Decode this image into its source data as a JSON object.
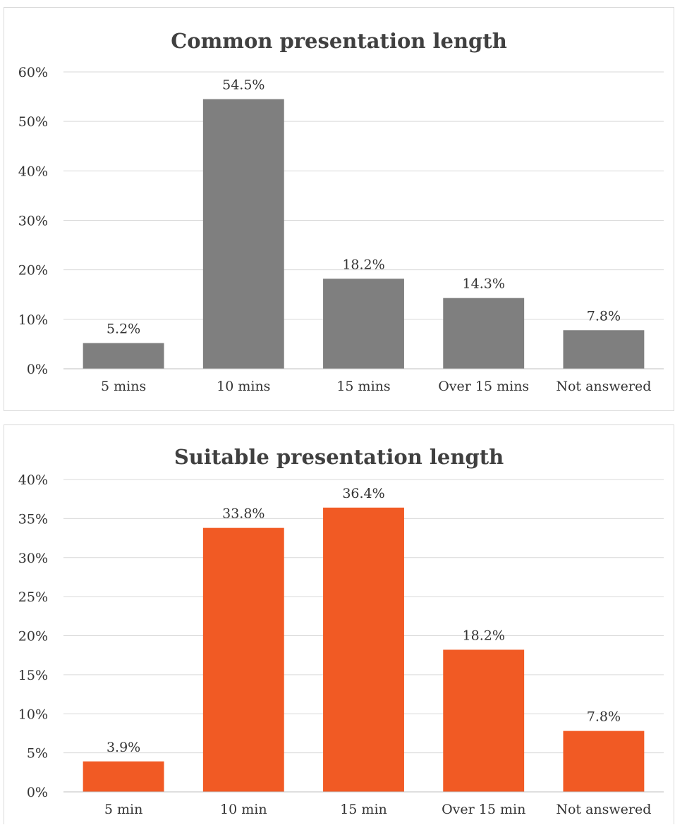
{
  "chart_data": [
    {
      "type": "bar",
      "title": "Common presentation length",
      "categories": [
        "5 mins",
        "10 mins",
        "15 mins",
        "Over 15 mins",
        "Not answered"
      ],
      "values": [
        5.2,
        54.5,
        18.2,
        14.3,
        7.8
      ],
      "value_labels": [
        "5.2%",
        "54.5%",
        "18.2%",
        "14.3%",
        "7.8%"
      ],
      "ylim": [
        0,
        60
      ],
      "yticks": [
        0,
        10,
        20,
        30,
        40,
        50,
        60
      ],
      "ytick_labels": [
        "0%",
        "10%",
        "20%",
        "30%",
        "40%",
        "50%",
        "60%"
      ],
      "bar_color": "#7f7f7f",
      "grid": true,
      "legend": "none"
    },
    {
      "type": "bar",
      "title": "Suitable presentation length",
      "categories": [
        "5 min",
        "10 min",
        "15 min",
        "Over 15 min",
        "Not answered"
      ],
      "values": [
        3.9,
        33.8,
        36.4,
        18.2,
        7.8
      ],
      "value_labels": [
        "3.9%",
        "33.8%",
        "36.4%",
        "18.2%",
        "7.8%"
      ],
      "ylim": [
        0,
        40
      ],
      "yticks": [
        0,
        5,
        10,
        15,
        20,
        25,
        30,
        35,
        40
      ],
      "ytick_labels": [
        "0%",
        "5%",
        "10%",
        "15%",
        "20%",
        "25%",
        "30%",
        "35%",
        "40%"
      ],
      "bar_color": "#f15a24",
      "grid": true,
      "legend": "none"
    }
  ]
}
